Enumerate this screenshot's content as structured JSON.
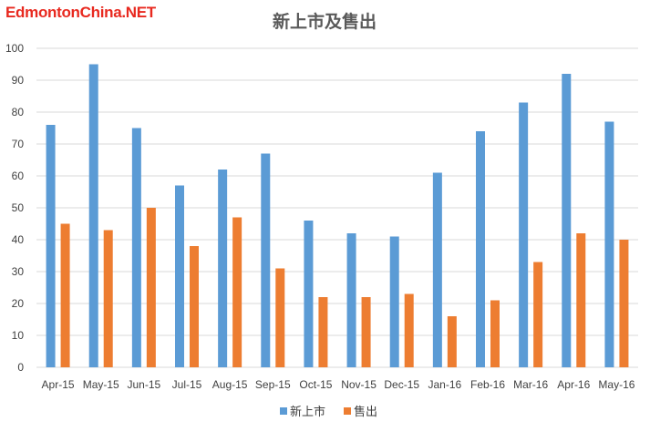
{
  "watermark": "EdmontonChina.NET",
  "colors": {
    "series1": "#5b9bd5",
    "series2": "#ed7d31",
    "grid": "#d9d9d9",
    "axis_text": "#404040",
    "title": "#595959",
    "watermark": "#e8291f"
  },
  "chart_data": {
    "type": "bar",
    "title": "新上市及售出",
    "xlabel": "",
    "ylabel": "",
    "categories": [
      "Apr-15",
      "May-15",
      "Jun-15",
      "Jul-15",
      "Aug-15",
      "Sep-15",
      "Oct-15",
      "Nov-15",
      "Dec-15",
      "Jan-16",
      "Feb-16",
      "Mar-16",
      "Apr-16",
      "May-16"
    ],
    "series": [
      {
        "name": "新上市",
        "values": [
          76,
          95,
          75,
          57,
          62,
          67,
          46,
          42,
          41,
          61,
          74,
          83,
          92,
          77
        ]
      },
      {
        "name": "售出",
        "values": [
          45,
          43,
          50,
          38,
          47,
          31,
          22,
          22,
          23,
          16,
          21,
          33,
          42,
          40
        ]
      }
    ],
    "ylim": [
      0,
      100
    ],
    "yticks": [
      0,
      10,
      20,
      30,
      40,
      50,
      60,
      70,
      80,
      90,
      100
    ],
    "grid": true,
    "legend": "bottom"
  }
}
